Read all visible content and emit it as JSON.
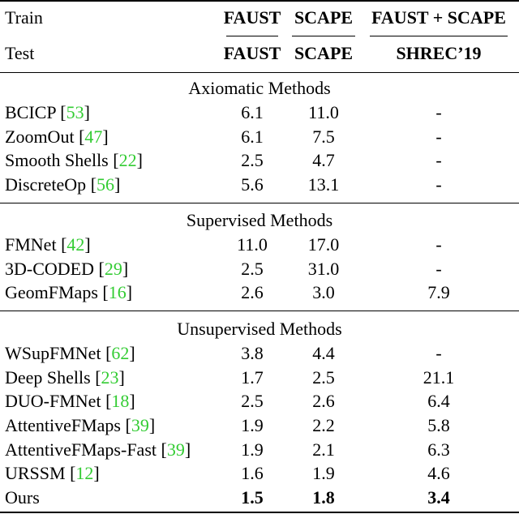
{
  "header": {
    "train_label": "Train",
    "test_label": "Test",
    "train_cols": [
      "FAUST",
      "SCAPE",
      "FAUST + SCAPE"
    ],
    "test_cols": [
      "FAUST",
      "SCAPE",
      "SHREC’19"
    ]
  },
  "sections": [
    {
      "title": "Axiomatic Methods",
      "rows": [
        {
          "method": "BCICP",
          "ref": "53",
          "faust": "6.1",
          "scape": "11.0",
          "shrec": "-"
        },
        {
          "method": "ZoomOut",
          "ref": "47",
          "faust": "6.1",
          "scape": "7.5",
          "shrec": "-"
        },
        {
          "method": "Smooth Shells",
          "ref": "22",
          "faust": "2.5",
          "scape": "4.7",
          "shrec": "-"
        },
        {
          "method": "DiscreteOp",
          "ref": "56",
          "faust": "5.6",
          "scape": "13.1",
          "shrec": "-"
        }
      ]
    },
    {
      "title": "Supervised Methods",
      "rows": [
        {
          "method": "FMNet",
          "ref": "42",
          "faust": "11.0",
          "scape": "17.0",
          "shrec": "-"
        },
        {
          "method": "3D-CODED",
          "ref": "29",
          "faust": "2.5",
          "scape": "31.0",
          "shrec": "-"
        },
        {
          "method": "GeomFMaps",
          "ref": "16",
          "faust": "2.6",
          "scape": "3.0",
          "shrec": "7.9"
        }
      ]
    },
    {
      "title": "Unsupervised Methods",
      "rows": [
        {
          "method": "WSupFMNet",
          "ref": "62",
          "faust": "3.8",
          "scape": "4.4",
          "shrec": "-"
        },
        {
          "method": "Deep Shells",
          "ref": "23",
          "faust": "1.7",
          "scape": "2.5",
          "shrec": "21.1"
        },
        {
          "method": "DUO-FMNet",
          "ref": "18",
          "faust": "2.5",
          "scape": "2.6",
          "shrec": "6.4"
        },
        {
          "method": "AttentiveFMaps",
          "ref": "39",
          "faust": "1.9",
          "scape": "2.2",
          "shrec": "5.8"
        },
        {
          "method": "AttentiveFMaps-Fast",
          "ref": "39",
          "faust": "1.9",
          "scape": "2.1",
          "shrec": "6.3"
        },
        {
          "method": "URSSM",
          "ref": "12",
          "faust": "1.6",
          "scape": "1.9",
          "shrec": "4.6"
        },
        {
          "method": "Ours",
          "ref": "",
          "faust": "1.5",
          "scape": "1.8",
          "shrec": "3.4",
          "bold": true
        }
      ]
    }
  ]
}
